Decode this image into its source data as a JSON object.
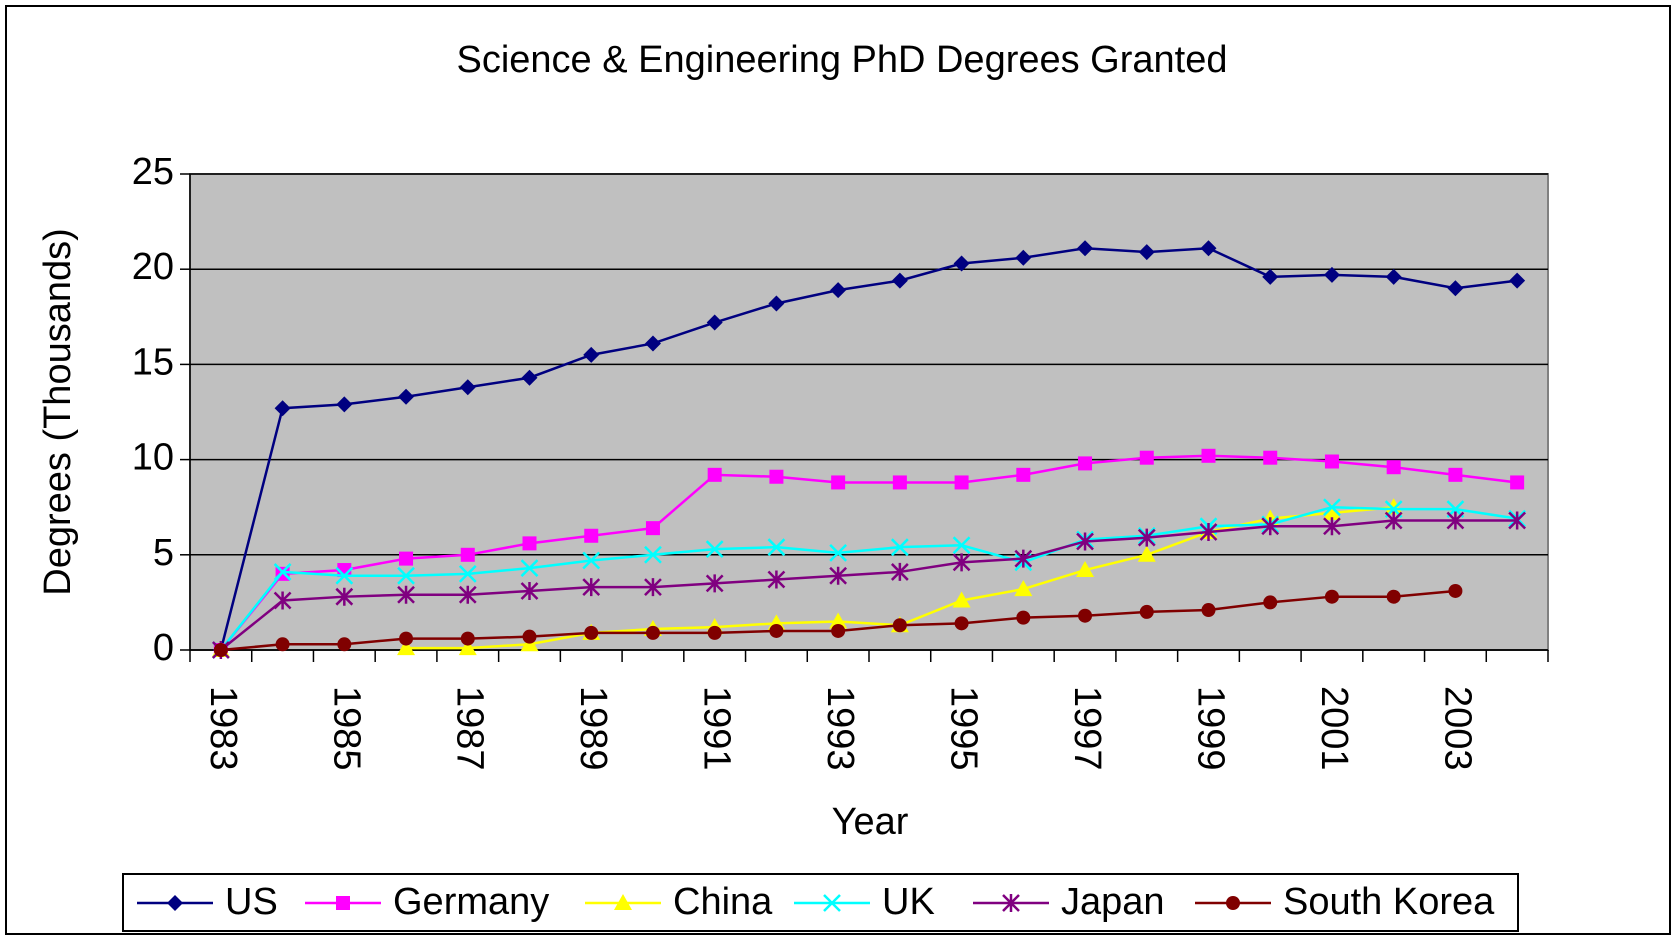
{
  "chart_data": {
    "type": "line",
    "title": "Science & Engineering PhD Degrees Granted",
    "x_label": "Year",
    "y_label": "Degrees (Thousands)",
    "categories": [
      "1983",
      null,
      "1985",
      null,
      "1987",
      null,
      "1989",
      null,
      "1991",
      null,
      "1993",
      null,
      "1995",
      null,
      "1997",
      null,
      "1999",
      null,
      "2001",
      null,
      "2003",
      null
    ],
    "ylim": [
      0,
      25
    ],
    "yticks": [
      0,
      5,
      10,
      15,
      20,
      25
    ],
    "grid": true,
    "plot_background": "#c0c0c0",
    "legend": "bottom",
    "series": [
      {
        "name": "US",
        "color": "#000080",
        "marker": "diamond",
        "values": [
          0,
          12.7,
          12.9,
          13.3,
          13.8,
          14.3,
          15.5,
          16.1,
          17.2,
          18.2,
          18.9,
          19.4,
          20.3,
          20.6,
          21.1,
          20.9,
          21.1,
          19.6,
          19.7,
          19.6,
          19.0,
          19.4
        ]
      },
      {
        "name": "Germany",
        "color": "#ff00ff",
        "marker": "square",
        "values": [
          0,
          4.0,
          4.2,
          4.8,
          5.0,
          5.6,
          6.0,
          6.4,
          9.2,
          9.1,
          8.8,
          8.8,
          8.8,
          9.2,
          9.8,
          10.1,
          10.2,
          10.1,
          9.9,
          9.6,
          9.2,
          8.8
        ]
      },
      {
        "name": "China",
        "color": "#ffff00",
        "marker": "triangle",
        "values": [
          0,
          null,
          null,
          0.1,
          0.1,
          0.3,
          0.9,
          1.1,
          1.2,
          1.4,
          1.5,
          1.3,
          2.6,
          3.2,
          4.2,
          5.0,
          6.2,
          6.9,
          7.2,
          7.5,
          null,
          null
        ]
      },
      {
        "name": "UK",
        "color": "#00ffff",
        "marker": "x",
        "values": [
          0,
          4.1,
          3.9,
          3.9,
          4.0,
          4.3,
          4.7,
          5.0,
          5.3,
          5.4,
          5.1,
          5.4,
          5.5,
          4.6,
          5.8,
          6.0,
          6.5,
          6.6,
          7.5,
          7.4,
          7.4,
          6.9
        ]
      },
      {
        "name": "Japan",
        "color": "#800080",
        "marker": "star",
        "values": [
          0,
          2.6,
          2.8,
          2.9,
          2.9,
          3.1,
          3.3,
          3.3,
          3.5,
          3.7,
          3.9,
          4.1,
          4.6,
          4.8,
          5.7,
          5.9,
          6.2,
          6.5,
          6.5,
          6.8,
          6.8,
          6.8
        ]
      },
      {
        "name": "South Korea",
        "color": "#800000",
        "marker": "circle",
        "values": [
          0,
          0.3,
          0.3,
          0.6,
          0.6,
          0.7,
          0.9,
          0.9,
          0.9,
          1.0,
          1.0,
          1.3,
          1.4,
          1.7,
          1.8,
          2.0,
          2.1,
          2.5,
          2.8,
          2.8,
          3.1,
          null
        ]
      }
    ]
  }
}
